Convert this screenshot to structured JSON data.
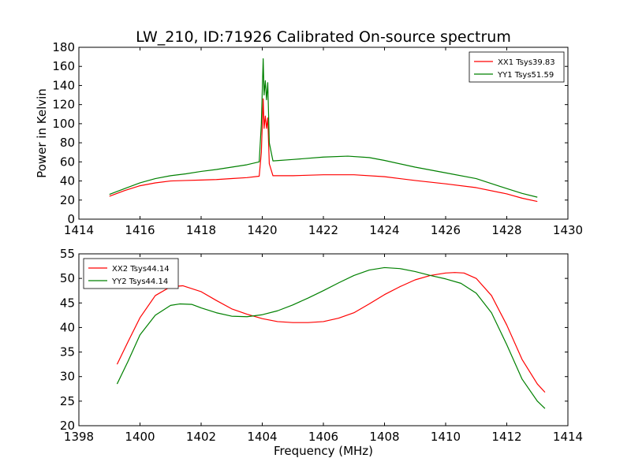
{
  "title": "LW_210, ID:71926 Calibrated On-source spectrum",
  "chart_data": [
    {
      "type": "line",
      "ylabel": "Power in Kelvin",
      "xlabel": "",
      "xlim": [
        1414,
        1430
      ],
      "ylim": [
        0,
        180
      ],
      "xticks": [
        "1414",
        "1416",
        "1418",
        "1420",
        "1422",
        "1424",
        "1426",
        "1428",
        "1430"
      ],
      "yticks": [
        "0",
        "20",
        "40",
        "60",
        "80",
        "100",
        "120",
        "140",
        "160",
        "180"
      ],
      "legend": "top-right",
      "series": [
        {
          "name": "XX1 Tsys39.83",
          "color": "#ff0000",
          "x": [
            1415.0,
            1415.5,
            1416.0,
            1416.5,
            1417.0,
            1417.5,
            1418.0,
            1418.5,
            1419.0,
            1419.5,
            1419.9,
            1419.97,
            1420.03,
            1420.06,
            1420.1,
            1420.14,
            1420.18,
            1420.23,
            1420.35,
            1421.0,
            1422.0,
            1423.0,
            1424.0,
            1425.0,
            1426.0,
            1427.0,
            1428.0,
            1428.5,
            1429.0
          ],
          "values": [
            24,
            30,
            35,
            38,
            40,
            40.5,
            41,
            41.5,
            42.5,
            43.5,
            45,
            70,
            126,
            95,
            108,
            95,
            106,
            58,
            45.5,
            45.5,
            46.5,
            46.5,
            44.5,
            40.5,
            37,
            33,
            26.5,
            22,
            18.5
          ]
        },
        {
          "name": "YY1 Tsys51.59",
          "color": "#008000",
          "x": [
            1415.0,
            1415.5,
            1416.0,
            1416.5,
            1417.0,
            1417.5,
            1418.0,
            1418.5,
            1419.0,
            1419.5,
            1419.9,
            1419.97,
            1420.03,
            1420.06,
            1420.1,
            1420.14,
            1420.18,
            1420.23,
            1420.35,
            1421.0,
            1422.0,
            1422.8,
            1423.5,
            1424.0,
            1425.0,
            1426.0,
            1427.0,
            1428.0,
            1428.5,
            1429.0
          ],
          "values": [
            26,
            32,
            38,
            42.5,
            45.5,
            47.5,
            50,
            52,
            54.5,
            57,
            60,
            100,
            168,
            130,
            145,
            125,
            143,
            80,
            61,
            62.5,
            65,
            66,
            64.5,
            61.5,
            54.5,
            48.5,
            42.5,
            32,
            27,
            23
          ]
        }
      ]
    },
    {
      "type": "line",
      "xlabel": "Frequency (MHz)",
      "ylabel": "",
      "xlim": [
        1398,
        1414
      ],
      "ylim": [
        20,
        55
      ],
      "xticks": [
        "1398",
        "1400",
        "1402",
        "1404",
        "1406",
        "1408",
        "1410",
        "1412",
        "1414"
      ],
      "yticks": [
        "20",
        "25",
        "30",
        "35",
        "40",
        "45",
        "50",
        "55"
      ],
      "legend": "top-left",
      "series": [
        {
          "name": "XX2 Tsys44.14",
          "color": "#ff0000",
          "x": [
            1399.25,
            1399.6,
            1400.0,
            1400.5,
            1401.0,
            1401.4,
            1402.0,
            1402.5,
            1403.0,
            1403.5,
            1404.0,
            1404.5,
            1405.0,
            1405.5,
            1406.0,
            1406.5,
            1407.0,
            1407.5,
            1408.0,
            1408.5,
            1409.0,
            1409.5,
            1410.0,
            1410.3,
            1410.6,
            1411.0,
            1411.5,
            1412.0,
            1412.5,
            1413.0,
            1413.25
          ],
          "values": [
            32.5,
            37,
            42,
            46.5,
            48.3,
            48.5,
            47.3,
            45.5,
            43.8,
            42.7,
            41.8,
            41.2,
            41.0,
            41.0,
            41.2,
            41.9,
            43,
            44.8,
            46.7,
            48.3,
            49.7,
            50.6,
            51.1,
            51.2,
            51.1,
            50,
            46.5,
            40.5,
            33.5,
            28.5,
            26.8
          ]
        },
        {
          "name": "YY2 Tsys44.14",
          "color": "#008000",
          "x": [
            1399.25,
            1399.6,
            1400.0,
            1400.5,
            1401.0,
            1401.3,
            1401.7,
            1402.0,
            1402.5,
            1403.0,
            1403.5,
            1404.0,
            1404.5,
            1405.0,
            1405.5,
            1406.0,
            1406.5,
            1407.0,
            1407.5,
            1408.0,
            1408.5,
            1409.0,
            1409.5,
            1410.0,
            1410.5,
            1411.0,
            1411.5,
            1412.0,
            1412.5,
            1413.0,
            1413.25
          ],
          "values": [
            28.5,
            33,
            38.5,
            42.5,
            44.5,
            44.8,
            44.7,
            44.0,
            43.0,
            42.3,
            42.2,
            42.6,
            43.4,
            44.6,
            46.0,
            47.5,
            49.1,
            50.6,
            51.7,
            52.2,
            52.0,
            51.4,
            50.6,
            49.9,
            49.0,
            47.0,
            43,
            36.5,
            29.5,
            25,
            23.5
          ]
        }
      ]
    }
  ]
}
